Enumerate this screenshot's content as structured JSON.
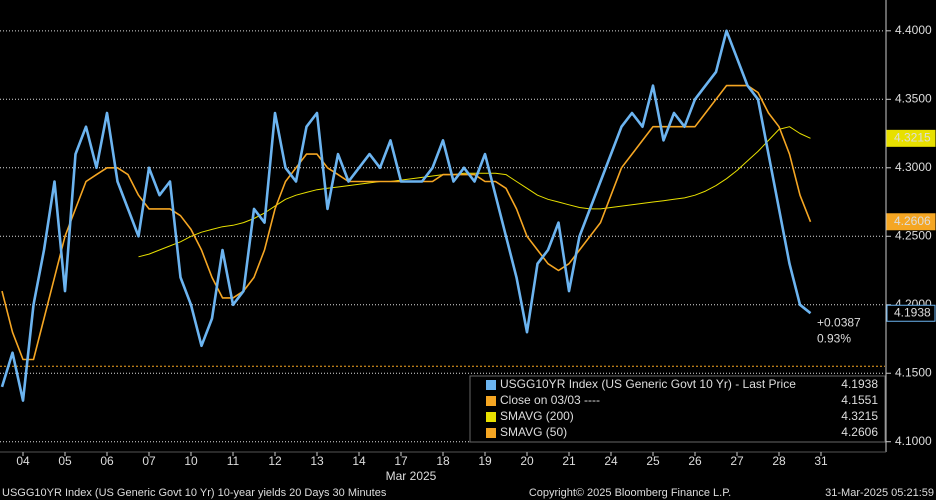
{
  "chart_data": {
    "type": "line",
    "categories": [
      null,
      null,
      "04",
      null,
      null,
      null,
      "05",
      null,
      null,
      null,
      "06",
      null,
      null,
      null,
      "07",
      null,
      null,
      null,
      "10",
      null,
      null,
      null,
      "11",
      null,
      null,
      null,
      "12",
      null,
      null,
      null,
      "13",
      null,
      null,
      null,
      "14",
      null,
      null,
      null,
      "17",
      null,
      null,
      null,
      "18",
      null,
      null,
      null,
      "19",
      null,
      null,
      null,
      "20",
      null,
      null,
      null,
      "21",
      null,
      null,
      null,
      "24",
      null,
      null,
      null,
      "25",
      null,
      null,
      null,
      "26",
      null,
      null,
      null,
      "27",
      null,
      null,
      null,
      "28",
      null,
      null,
      null,
      "31",
      null
    ],
    "x_label": "Mar 2025",
    "series": [
      {
        "name": "USGG10YR Index (US Generic Govt 10 Yr) - Last Price",
        "color": "#6cb4f0",
        "last": 4.1938,
        "values": [
          4.14,
          4.165,
          4.13,
          4.2,
          4.24,
          4.29,
          4.21,
          4.31,
          4.33,
          4.3,
          4.34,
          4.29,
          4.27,
          4.25,
          4.3,
          4.28,
          4.29,
          4.22,
          4.2,
          4.17,
          4.19,
          4.24,
          4.2,
          4.21,
          4.27,
          4.26,
          4.34,
          4.3,
          4.29,
          4.33,
          4.34,
          4.27,
          4.31,
          4.29,
          4.3,
          4.31,
          4.3,
          4.32,
          4.29,
          4.29,
          4.29,
          4.3,
          4.32,
          4.29,
          4.3,
          4.29,
          4.31,
          4.28,
          4.25,
          4.22,
          4.18,
          4.23,
          4.24,
          4.26,
          4.21,
          4.25,
          4.27,
          4.29,
          4.31,
          4.33,
          4.34,
          4.33,
          4.36,
          4.32,
          4.34,
          4.33,
          4.35,
          4.36,
          4.37,
          4.4,
          4.38,
          4.36,
          4.35,
          4.31,
          4.27,
          4.23,
          4.2,
          4.1938,
          null,
          null
        ]
      },
      {
        "name": "SMAVG (200)",
        "color": "#e8e000",
        "last": 4.3215,
        "values": [
          null,
          null,
          null,
          null,
          null,
          null,
          null,
          null,
          null,
          null,
          null,
          null,
          null,
          4.235,
          4.237,
          4.24,
          4.243,
          4.246,
          4.25,
          4.253,
          4.255,
          4.257,
          4.258,
          4.26,
          4.263,
          4.267,
          4.272,
          4.277,
          4.28,
          4.282,
          4.284,
          4.285,
          4.286,
          4.287,
          4.288,
          4.289,
          4.29,
          4.29,
          4.291,
          4.292,
          4.293,
          4.294,
          4.295,
          4.295,
          4.296,
          4.296,
          4.296,
          4.296,
          4.295,
          4.29,
          4.285,
          4.28,
          4.277,
          4.275,
          4.273,
          4.271,
          4.27,
          4.27,
          4.271,
          4.272,
          4.273,
          4.274,
          4.275,
          4.276,
          4.277,
          4.278,
          4.28,
          4.283,
          4.287,
          4.292,
          4.298,
          4.305,
          4.312,
          4.32,
          4.328,
          4.33,
          4.325,
          4.3215,
          null,
          null
        ]
      },
      {
        "name": "SMAVG (50)",
        "color": "#f5a623",
        "last": 4.2606,
        "values": [
          4.21,
          4.18,
          4.16,
          4.16,
          4.19,
          4.22,
          4.25,
          4.27,
          4.29,
          4.295,
          4.3,
          4.3,
          4.295,
          4.28,
          4.27,
          4.27,
          4.27,
          4.265,
          4.255,
          4.24,
          4.22,
          4.205,
          4.205,
          4.21,
          4.22,
          4.24,
          4.27,
          4.29,
          4.3,
          4.31,
          4.31,
          4.3,
          4.295,
          4.29,
          4.29,
          4.29,
          4.29,
          4.29,
          4.29,
          4.29,
          4.29,
          4.29,
          4.295,
          4.295,
          4.295,
          4.295,
          4.29,
          4.29,
          4.285,
          4.27,
          4.25,
          4.24,
          4.23,
          4.225,
          4.23,
          4.24,
          4.25,
          4.26,
          4.28,
          4.3,
          4.31,
          4.32,
          4.33,
          4.33,
          4.33,
          4.33,
          4.33,
          4.34,
          4.35,
          4.36,
          4.36,
          4.36,
          4.355,
          4.34,
          4.33,
          4.31,
          4.28,
          4.2606,
          null,
          null
        ]
      }
    ],
    "reference_line": {
      "name": "Close on 03/03 ----",
      "value": 4.1551,
      "color": "#f5a623"
    },
    "annotations": [
      {
        "value": 0.0387,
        "label": "+0.0387"
      },
      {
        "value": 0.93,
        "label": "0.93%"
      }
    ],
    "ylim": [
      4.0925,
      4.4225
    ],
    "yticks": [
      {
        "value": 4.1,
        "label": "4.1000"
      },
      {
        "value": 4.15,
        "label": "4.1500"
      },
      {
        "value": 4.2,
        "label": "4.2000"
      },
      {
        "value": 4.25,
        "label": "4.2500"
      },
      {
        "value": 4.3,
        "label": "4.3000"
      },
      {
        "value": 4.35,
        "label": "4.3500"
      },
      {
        "value": 4.4,
        "label": "4.4000"
      }
    ],
    "grid": true,
    "footer": {
      "description": "USGG10YR Index (US Generic Govt 10 Yr) 10-year yields 20 Days 30 Minutes",
      "copyright": "Copyright© 2025 Bloomberg Finance L.P.",
      "timestamp": "31-Mar-2025 05:21:59"
    }
  }
}
